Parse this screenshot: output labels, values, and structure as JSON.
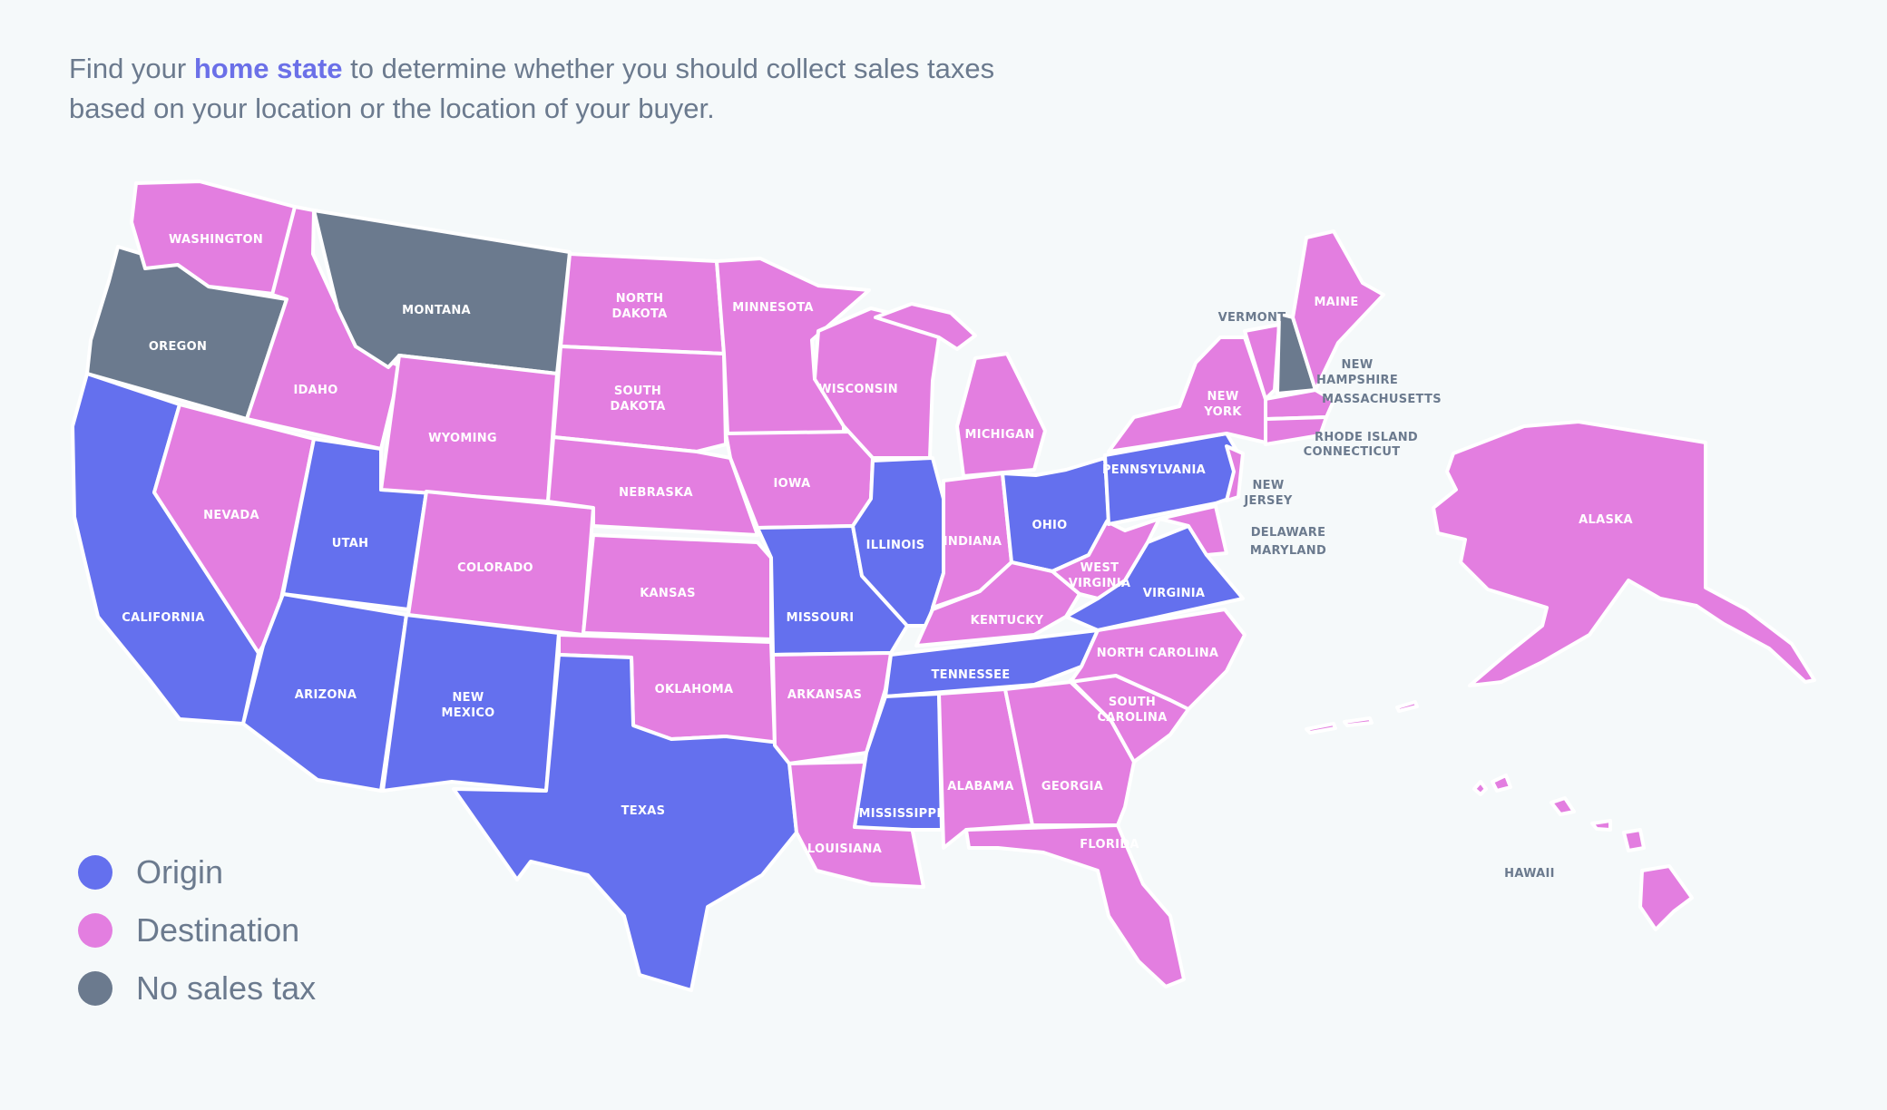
{
  "intro": {
    "pre": "Find your ",
    "highlight": "home state",
    "post": " to determine whether you should collect sales taxes based on your location or the location of your buyer."
  },
  "colors": {
    "origin": "#6470ee",
    "destination": "#e37ee0",
    "none": "#6b7a8e"
  },
  "legend": [
    {
      "key": "origin",
      "label": "Origin"
    },
    {
      "key": "destination",
      "label": "Destination"
    },
    {
      "key": "none",
      "label": "No sales tax"
    }
  ],
  "states": {
    "washington": "WASHINGTON",
    "oregon": "OREGON",
    "california": "CALIFORNIA",
    "idaho": "IDAHO",
    "nevada": "NEVADA",
    "montana": "MONTANA",
    "wyoming": "WYOMING",
    "utah": "UTAH",
    "arizona": "ARIZONA",
    "colorado": "COLORADO",
    "new_mexico": [
      "NEW",
      "MEXICO"
    ],
    "north_dakota": [
      "NORTH",
      "DAKOTA"
    ],
    "south_dakota": [
      "SOUTH",
      "DAKOTA"
    ],
    "nebraska": "NEBRASKA",
    "kansas": "KANSAS",
    "oklahoma": "OKLAHOMA",
    "texas": "TEXAS",
    "minnesota": "MINNESOTA",
    "iowa": "IOWA",
    "missouri": "MISSOURI",
    "arkansas": "ARKANSAS",
    "louisiana": "LOUISIANA",
    "wisconsin": "WISCONSIN",
    "illinois": "ILLINOIS",
    "michigan": "MICHIGAN",
    "indiana": "INDIANA",
    "ohio": "OHIO",
    "kentucky": "KENTUCKY",
    "tennessee": "TENNESSEE",
    "mississippi": "MISSISSIPPI",
    "alabama": "ALABAMA",
    "georgia": "GEORGIA",
    "florida": "FLORIDA",
    "south_carolina": [
      "SOUTH",
      "CAROLINA"
    ],
    "north_carolina": "NORTH CAROLINA",
    "virginia": "VIRGINIA",
    "west_virginia": [
      "WEST",
      "VIRGINIA"
    ],
    "pennsylvania": "PENNSYLVANIA",
    "new_york": [
      "NEW",
      "YORK"
    ],
    "vermont": "VERMONT",
    "new_hampshire": [
      "NEW",
      "HAMPSHIRE"
    ],
    "maine": "MAINE",
    "massachusetts": "MASSACHUSETTS",
    "rhode_island": "RHODE ISLAND",
    "connecticut": "CONNECTICUT",
    "new_jersey": [
      "NEW",
      "JERSEY"
    ],
    "delaware": "DELAWARE",
    "maryland": "MARYLAND",
    "alaska": "ALASKA",
    "hawaii": "HAWAII"
  }
}
